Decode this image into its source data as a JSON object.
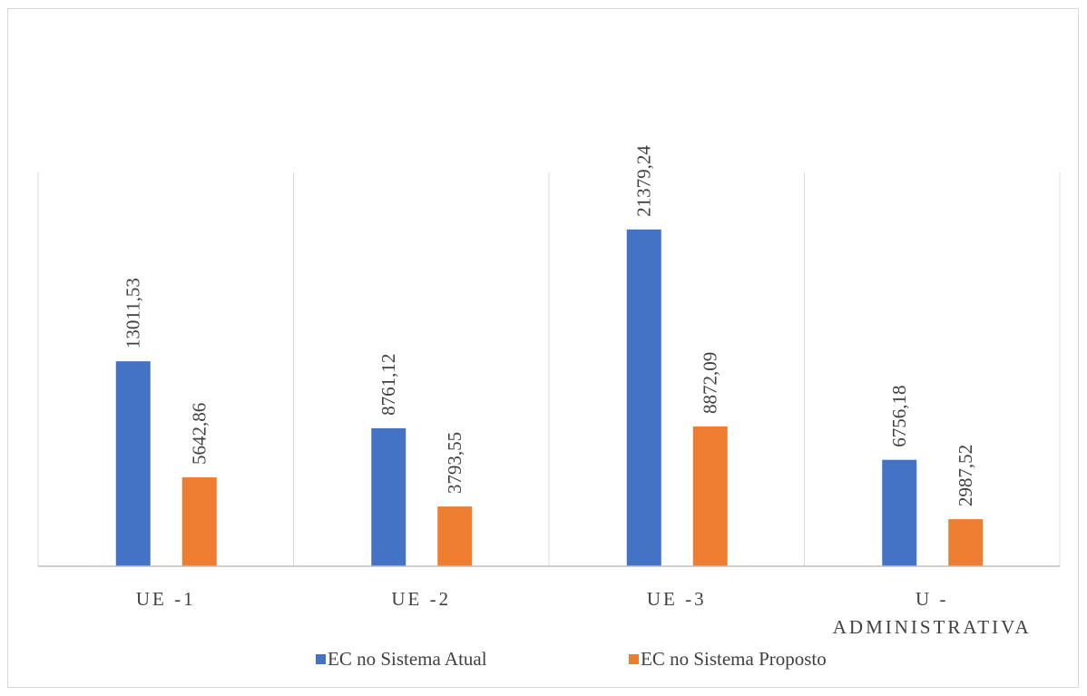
{
  "chart_data": {
    "type": "bar",
    "title": "",
    "xlabel": "",
    "ylabel": "",
    "categories": [
      [
        "UE -1"
      ],
      [
        "UE -2"
      ],
      [
        "UE -3"
      ],
      [
        "U -",
        "ADMINISTRATIVA"
      ]
    ],
    "series": [
      {
        "name": "EC no Sistema Atual",
        "color": "#4472c4",
        "values": [
          13011.53,
          8761.12,
          21379.24,
          6756.18
        ],
        "value_labels": [
          "13011,53",
          "8761,12",
          "21379,24",
          "6756,18"
        ]
      },
      {
        "name": "EC no Sistema Proposto",
        "color": "#ed7d31",
        "values": [
          5642.86,
          3793.55,
          8872.09,
          2987.52
        ],
        "value_labels": [
          "5642,86",
          "3793,55",
          "8872,09",
          "2987,52"
        ]
      }
    ],
    "ylim": [
      0,
      25000
    ],
    "grid": "vertical category separators",
    "legend_position": "bottom"
  }
}
